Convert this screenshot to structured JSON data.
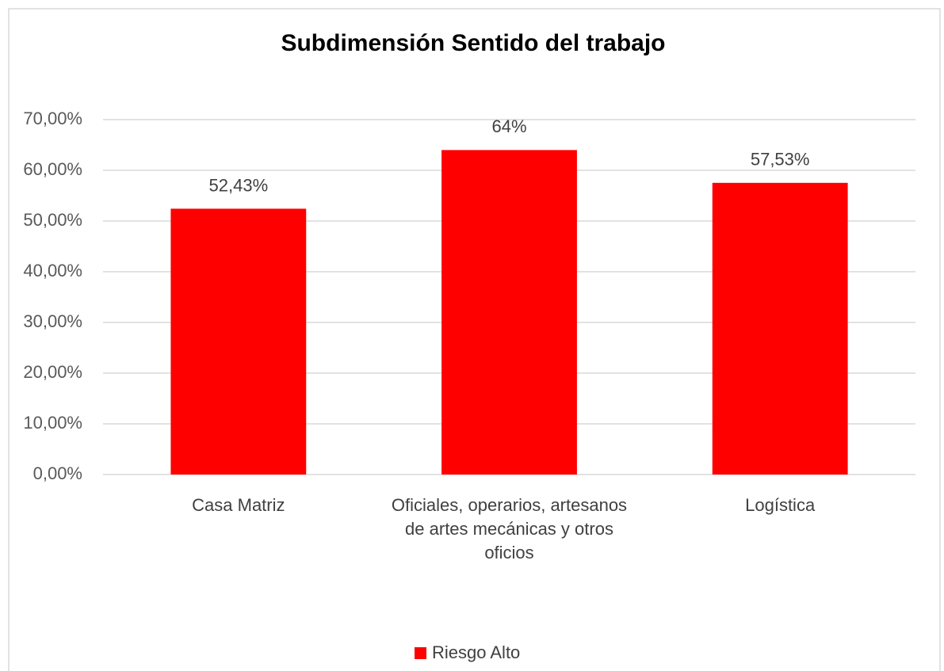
{
  "chart_data": {
    "type": "bar",
    "title": "Subdimensión Sentido del trabajo",
    "categories": [
      "Casa Matriz",
      "Oficiales, operarios, artesanos de artes mecánicas y otros oficios",
      "Logística"
    ],
    "series": [
      {
        "name": "Riesgo Alto",
        "color": "#ff0000",
        "values": [
          52.43,
          64,
          57.53
        ],
        "value_labels": [
          "52,43%",
          "64%",
          "57,53%"
        ]
      }
    ],
    "ylim": [
      0,
      70
    ],
    "yticks": [
      {
        "value": 0,
        "label": "0,00%"
      },
      {
        "value": 10,
        "label": "10,00%"
      },
      {
        "value": 20,
        "label": "20,00%"
      },
      {
        "value": 30,
        "label": "30,00%"
      },
      {
        "value": 40,
        "label": "40,00%"
      },
      {
        "value": 50,
        "label": "50,00%"
      },
      {
        "value": 60,
        "label": "60,00%"
      },
      {
        "value": 70,
        "label": "70,00%"
      }
    ],
    "grid": true,
    "legend": "bottom"
  }
}
